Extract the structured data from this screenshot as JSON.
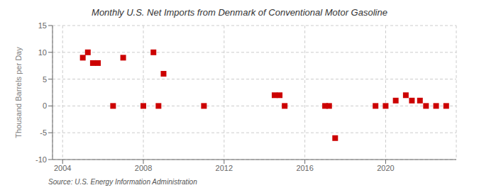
{
  "chart_data": {
    "type": "scatter",
    "title": "Monthly U.S. Net Imports from Denmark of Conventional Motor Gasoline",
    "y_label": "Thousand Barrels per Day",
    "annotations": [
      "Source: U.S. Energy Information Administration"
    ],
    "x": [
      2005.0,
      2005.25,
      2005.5,
      2005.75,
      2006.5,
      2007.0,
      2008.0,
      2008.5,
      2008.75,
      2009.0,
      2011.0,
      2014.5,
      2014.75,
      2015.0,
      2017.0,
      2017.2,
      2017.5,
      2019.5,
      2020.0,
      2020.5,
      2021.0,
      2021.3,
      2021.7,
      2022.0,
      2022.5,
      2023.0
    ],
    "values": [
      9.0,
      10.0,
      8.0,
      8.0,
      0.0,
      9.0,
      0.0,
      10.0,
      0.0,
      6.0,
      0.0,
      2.0,
      2.0,
      0.0,
      0.0,
      0.0,
      -6.0,
      0.0,
      0.0,
      1.0,
      2.0,
      1.0,
      1.0,
      0.0,
      0.0,
      0.0
    ],
    "color": "#cc0000",
    "marker": "square",
    "xlim": [
      2003.5,
      2023.5
    ],
    "xticks": [
      2004,
      2008,
      2012,
      2016,
      2020
    ],
    "ylim": [
      -10,
      15
    ],
    "yticks": [
      -10,
      -5,
      0,
      5,
      10,
      15
    ],
    "grid": true
  }
}
